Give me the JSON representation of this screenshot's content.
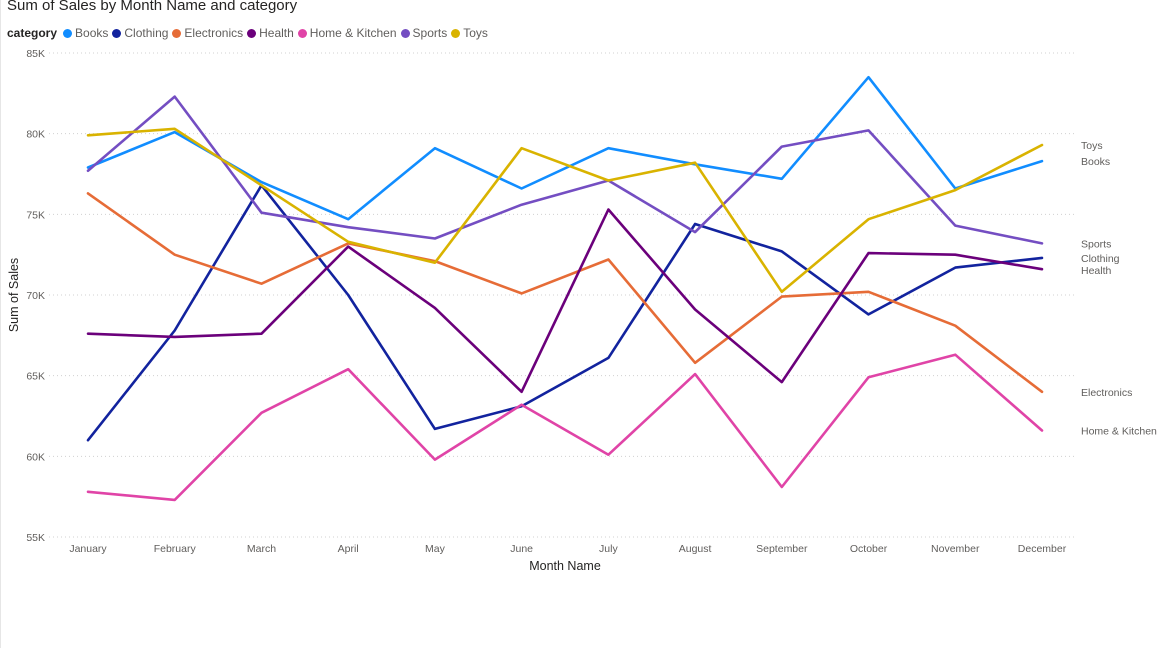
{
  "chart_data": {
    "type": "line",
    "title": "Sum of Sales by Month Name and category",
    "legend_title": "category",
    "xlabel": "Month Name",
    "ylabel": "Sum of Sales",
    "ylim": [
      55000,
      85000
    ],
    "y_ticks": [
      55000,
      60000,
      65000,
      70000,
      75000,
      80000,
      85000
    ],
    "y_tick_labels": [
      "55K",
      "60K",
      "65K",
      "70K",
      "75K",
      "80K",
      "85K"
    ],
    "grid": true,
    "legend_position": "top-left",
    "categories": [
      "January",
      "February",
      "March",
      "April",
      "May",
      "June",
      "July",
      "August",
      "September",
      "October",
      "November",
      "December"
    ],
    "series": [
      {
        "name": "Books",
        "color": "#118DFF",
        "values": [
          77900,
          80100,
          77000,
          74700,
          79100,
          76600,
          79100,
          78100,
          77200,
          83500,
          76600,
          78300
        ]
      },
      {
        "name": "Clothing",
        "color": "#12239E",
        "values": [
          61000,
          67800,
          76800,
          70000,
          61700,
          63100,
          66100,
          74400,
          72700,
          68800,
          71700,
          72300
        ]
      },
      {
        "name": "Electronics",
        "color": "#E66C37",
        "values": [
          76300,
          72500,
          70700,
          73200,
          72100,
          70100,
          72200,
          65800,
          69900,
          70200,
          68100,
          64000
        ]
      },
      {
        "name": "Health",
        "color": "#6B007B",
        "values": [
          67600,
          67400,
          67600,
          73000,
          69200,
          64000,
          75300,
          69100,
          64600,
          72600,
          72500,
          71600
        ]
      },
      {
        "name": "Home & Kitchen",
        "color": "#E044A7",
        "values": [
          57800,
          57300,
          62700,
          65400,
          59800,
          63200,
          60100,
          65100,
          58100,
          64900,
          66300,
          61600
        ]
      },
      {
        "name": "Sports",
        "color": "#744EC2",
        "values": [
          77700,
          82300,
          75100,
          74200,
          73500,
          75600,
          77100,
          73900,
          79200,
          80200,
          74300,
          73200
        ]
      },
      {
        "name": "Toys",
        "color": "#D9B300",
        "values": [
          79900,
          80300,
          76800,
          73300,
          72000,
          79100,
          77100,
          78200,
          70200,
          74700,
          76500,
          79300
        ]
      }
    ],
    "end_labels": [
      {
        "series": "Toys",
        "text": "Toys"
      },
      {
        "series": "Books",
        "text": "Books"
      },
      {
        "series": "Sports",
        "text": "Sports"
      },
      {
        "series": "Clothing",
        "text": "Clothing"
      },
      {
        "series": "Health",
        "text": "Health"
      },
      {
        "series": "Electronics",
        "text": "Electronics"
      },
      {
        "series": "Home & Kitchen",
        "text": "Home & Kitchen"
      }
    ]
  }
}
